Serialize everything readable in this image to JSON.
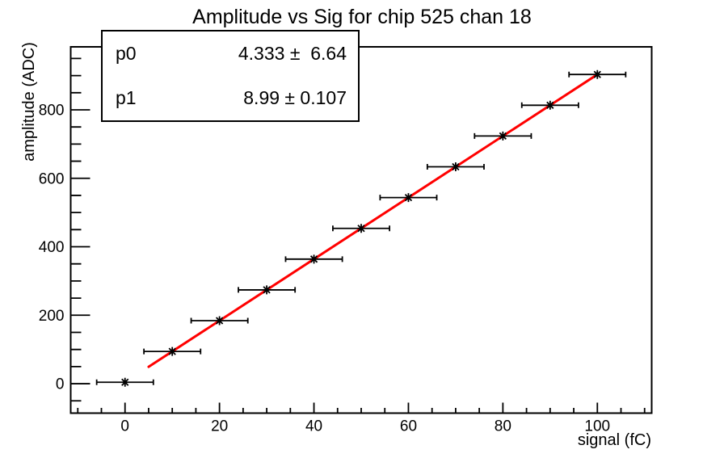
{
  "title": "Amplitude vs Sig for chip 525 chan 18",
  "stats": {
    "rows": [
      {
        "label": "p0",
        "value": "4.333 ±  6.64"
      },
      {
        "label": "p1",
        "value": "8.99 ± 0.107"
      }
    ]
  },
  "chart_data": {
    "type": "scatter",
    "title": "Amplitude vs Sig for chip 525 chan 18",
    "xlabel": "signal (fC)",
    "ylabel": "amplitude (ADC)",
    "x": [
      0,
      10,
      20,
      30,
      40,
      50,
      60,
      70,
      80,
      90,
      100
    ],
    "y": [
      4.3,
      94.2,
      184.1,
      274.0,
      363.9,
      453.8,
      543.7,
      633.6,
      723.5,
      813.4,
      903.3
    ],
    "x_error": 1.5,
    "marker": "asterisk-with-x-error-bars",
    "marker_color": "#000000",
    "line_between_points": false,
    "fit": {
      "model": "p0 + p1*x",
      "p0": 4.333,
      "p0_err": 6.64,
      "p1": 8.99,
      "p1_err": 0.107,
      "color": "#ff0000",
      "x_range": [
        5,
        100
      ]
    },
    "x_ticks_major": [
      0,
      20,
      40,
      60,
      80,
      100
    ],
    "x_minor_step": 5,
    "y_ticks_major": [
      0,
      200,
      400,
      600,
      800
    ],
    "y_minor_step": 50,
    "xlim": [
      -11.5,
      111.5
    ],
    "ylim": [
      -86,
      984
    ],
    "grid": false,
    "legend_position": "stats-box-top-left",
    "frame_color": "#000000",
    "background_color": "#ffffff"
  }
}
